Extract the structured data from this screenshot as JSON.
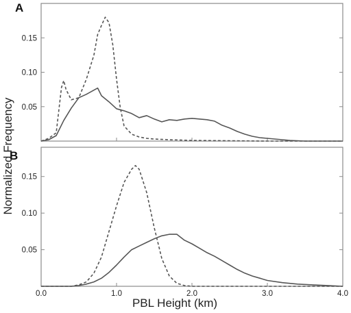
{
  "chart_data": {
    "type": "line",
    "ylabel": "Normalized Frequency",
    "xlabel": "PBL Height (km)",
    "shared_x_ticks": [
      "0.0",
      "1.0",
      "2.0",
      "3.0",
      "4.0"
    ],
    "panels": [
      {
        "label": "A",
        "xlim": [
          0.0,
          4.0
        ],
        "ylim": [
          0.0,
          0.2
        ],
        "y_ticks": [
          {
            "value": 0.05,
            "label": "0.05"
          },
          {
            "value": 0.1,
            "label": "0.10"
          },
          {
            "value": 0.15,
            "label": "0.15"
          }
        ],
        "series": [
          {
            "style": "solid",
            "x": [
              0.0,
              0.1,
              0.2,
              0.3,
              0.4,
              0.5,
              0.6,
              0.7,
              0.75,
              0.8,
              0.9,
              1.0,
              1.1,
              1.2,
              1.3,
              1.4,
              1.5,
              1.6,
              1.7,
              1.8,
              1.9,
              2.0,
              2.1,
              2.2,
              2.3,
              2.4,
              2.5,
              2.6,
              2.7,
              2.8,
              2.9,
              3.0,
              3.1,
              3.2,
              3.3,
              3.4,
              3.5,
              3.7,
              4.0
            ],
            "y": [
              0.0,
              0.002,
              0.008,
              0.03,
              0.048,
              0.063,
              0.068,
              0.074,
              0.077,
              0.066,
              0.057,
              0.047,
              0.044,
              0.04,
              0.034,
              0.037,
              0.032,
              0.028,
              0.031,
              0.03,
              0.032,
              0.033,
              0.032,
              0.031,
              0.029,
              0.023,
              0.019,
              0.014,
              0.01,
              0.007,
              0.005,
              0.004,
              0.003,
              0.002,
              0.001,
              0.0005,
              0.0,
              0.0,
              0.0
            ]
          },
          {
            "style": "dashed",
            "x": [
              0.0,
              0.1,
              0.2,
              0.27,
              0.3,
              0.33,
              0.4,
              0.5,
              0.6,
              0.7,
              0.75,
              0.8,
              0.85,
              0.9,
              0.95,
              1.0,
              1.05,
              1.1,
              1.2,
              1.3,
              1.4,
              1.5,
              1.7,
              2.0,
              2.5,
              3.0,
              4.0
            ],
            "y": [
              0.0,
              0.004,
              0.012,
              0.078,
              0.088,
              0.075,
              0.06,
              0.063,
              0.09,
              0.125,
              0.155,
              0.168,
              0.18,
              0.172,
              0.14,
              0.09,
              0.048,
              0.022,
              0.01,
              0.006,
              0.004,
              0.003,
              0.002,
              0.001,
              0.0005,
              0.0,
              0.0
            ]
          }
        ]
      },
      {
        "label": "B",
        "xlim": [
          0.0,
          4.0
        ],
        "ylim": [
          0.0,
          0.19
        ],
        "y_ticks": [
          {
            "value": 0.05,
            "label": "0.05"
          },
          {
            "value": 0.1,
            "label": "0.10"
          },
          {
            "value": 0.15,
            "label": "0.15"
          }
        ],
        "series": [
          {
            "style": "solid",
            "x": [
              0.0,
              0.4,
              0.5,
              0.6,
              0.7,
              0.8,
              0.9,
              1.0,
              1.1,
              1.2,
              1.3,
              1.4,
              1.5,
              1.6,
              1.7,
              1.8,
              1.9,
              2.0,
              2.1,
              2.2,
              2.3,
              2.4,
              2.5,
              2.6,
              2.7,
              2.8,
              2.9,
              3.0,
              3.2,
              3.4,
              3.6,
              3.8,
              4.0
            ],
            "y": [
              0.0,
              0.0,
              0.001,
              0.003,
              0.006,
              0.011,
              0.019,
              0.029,
              0.04,
              0.05,
              0.055,
              0.06,
              0.065,
              0.069,
              0.071,
              0.071,
              0.063,
              0.058,
              0.052,
              0.046,
              0.041,
              0.035,
              0.029,
              0.023,
              0.018,
              0.014,
              0.011,
              0.008,
              0.005,
              0.003,
              0.002,
              0.001,
              0.0
            ]
          },
          {
            "style": "dashed",
            "x": [
              0.0,
              0.4,
              0.5,
              0.6,
              0.7,
              0.8,
              0.9,
              1.0,
              1.1,
              1.2,
              1.25,
              1.3,
              1.4,
              1.5,
              1.6,
              1.7,
              1.8,
              1.9,
              2.0,
              2.5,
              4.0
            ],
            "y": [
              0.0,
              0.0,
              0.002,
              0.006,
              0.018,
              0.04,
              0.075,
              0.11,
              0.142,
              0.16,
              0.165,
              0.16,
              0.128,
              0.08,
              0.038,
              0.014,
              0.004,
              0.001,
              0.0,
              0.0,
              0.0
            ]
          }
        ]
      }
    ]
  }
}
